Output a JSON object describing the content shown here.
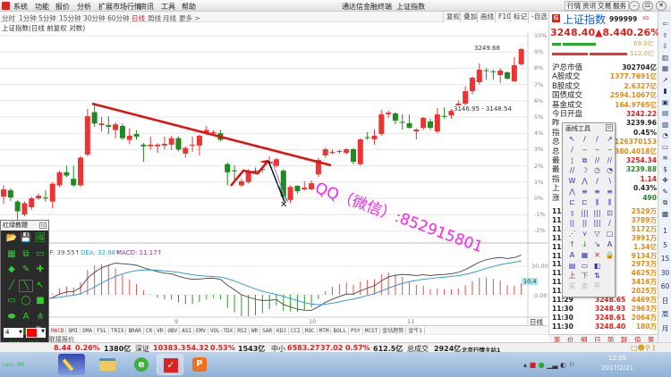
{
  "menu": {
    "items": [
      "系统",
      "功能",
      "报价",
      "分析",
      "扩展市场行情",
      "资讯",
      "工具",
      "帮助"
    ],
    "title": "通达信金融终端",
    "security": "上证指数",
    "right_buttons": [
      "行情",
      "资讯",
      "交易",
      "服务"
    ]
  },
  "periods": {
    "items": [
      "分时",
      "1分钟",
      "5分钟",
      "15分钟",
      "30分钟",
      "60分钟",
      "日线",
      "周线",
      "月线",
      "更多 >"
    ],
    "active": "日线"
  },
  "chart_tools": [
    "复权",
    "叠加",
    "画线",
    "F10",
    "标记",
    "-自选"
  ],
  "chart": {
    "title": "上证指数(日线 前复权 对数)",
    "high_label": "3249.68",
    "range_label": "3146.95 - 3148.54",
    "watermark": "QQ（微信）:852915801",
    "pct_ticks": [
      "10%",
      "9%",
      "8%",
      "7%",
      "6%",
      "5%",
      "4%",
      "3%",
      "2%",
      "1%",
      "0%",
      "-1%",
      "-2%"
    ],
    "x_ticks": [
      "9",
      "10",
      "11"
    ],
    "period_label": "日线",
    "zoom_buttons": [
      "+",
      "-",
      "0"
    ]
  },
  "chart_data": {
    "type": "candlestick",
    "ylabel_unit": "%",
    "ylim": [
      -2,
      10
    ],
    "x_ticks": [
      "9",
      "10",
      "11"
    ],
    "candles_ochl": [
      [
        0.1,
        0.55,
        0.8,
        -0.33
      ],
      [
        0.5,
        0.05,
        0.6,
        -0.16
      ],
      [
        -0.2,
        -0.8,
        -0.1,
        -1.3
      ],
      [
        -1.0,
        -0.3,
        -0.2,
        -1.1
      ],
      [
        -0.55,
        0.0,
        0.1,
        -0.7
      ],
      [
        0.0,
        0.16,
        0.3,
        -0.1
      ],
      [
        0.05,
        0.0,
        0.5,
        -0.2
      ],
      [
        -0.2,
        0.9,
        1.0,
        -0.6
      ],
      [
        0.8,
        1.6,
        1.7,
        0.7
      ],
      [
        1.6,
        1.4,
        2.0,
        1.3
      ],
      [
        1.2,
        0.8,
        2.0,
        0.7
      ],
      [
        0.8,
        2.5,
        2.6,
        0.7
      ],
      [
        2.7,
        5.05,
        5.5,
        2.6
      ],
      [
        5.3,
        4.6,
        5.8,
        4.4
      ],
      [
        4.5,
        4.6,
        5.0,
        4.1
      ],
      [
        4.5,
        4.4,
        5.05,
        3.96
      ],
      [
        4.2,
        4.55,
        4.7,
        3.7
      ],
      [
        4.45,
        3.7,
        4.6,
        3.6
      ],
      [
        3.6,
        3.85,
        4.3,
        3.35
      ],
      [
        3.96,
        3.8,
        4.2,
        3.6
      ],
      [
        3.3,
        3.2,
        3.4,
        2.25
      ],
      [
        3.2,
        3.3,
        3.8,
        3.0
      ],
      [
        3.2,
        3.3,
        3.4,
        2.8
      ],
      [
        3.25,
        3.35,
        3.8,
        3.0
      ],
      [
        3.3,
        3.7,
        3.85,
        2.97
      ],
      [
        3.7,
        3.0,
        3.8,
        2.9
      ],
      [
        2.75,
        3.1,
        3.2,
        2.5
      ],
      [
        3.25,
        3.3,
        3.8,
        2.85
      ],
      [
        3.25,
        3.85,
        3.9,
        2.64
      ],
      [
        4.0,
        4.2,
        4.45,
        3.9
      ],
      [
        4.0,
        4.07,
        4.2,
        3.9
      ],
      [
        4.0,
        3.6,
        4.2,
        3.5
      ],
      [
        2.1,
        1.6,
        2.2,
        0.8
      ],
      [
        1.72,
        1.68,
        2.03,
        1.04
      ],
      [
        0.8,
        1.05,
        1.2,
        0.7
      ],
      [
        1.0,
        1.7,
        1.8,
        0.9
      ],
      [
        1.7,
        1.65,
        1.9,
        1.5
      ],
      [
        1.8,
        1.75,
        2.0,
        1.6
      ],
      [
        2.15,
        2.25,
        2.6,
        2.0
      ],
      [
        2.0,
        2.4,
        2.5,
        1.9
      ],
      [
        1.7,
        0.1,
        1.8,
        0.0
      ],
      [
        -0.1,
        0.7,
        0.8,
        -0.3
      ],
      [
        0.77,
        0.44,
        0.8,
        0.3
      ],
      [
        0.55,
        0.66,
        1.05,
        0.5
      ],
      [
        0.55,
        0.93,
        1.1,
        0.5
      ],
      [
        1.48,
        2.36,
        2.5,
        1.3
      ],
      [
        2.64,
        3.02,
        3.1,
        2.5
      ],
      [
        2.8,
        2.86,
        3.0,
        2.7
      ],
      [
        2.86,
        2.91,
        3.0,
        2.75
      ],
      [
        2.8,
        3.02,
        3.1,
        2.7
      ],
      [
        3.02,
        2.25,
        3.1,
        2.1
      ],
      [
        2.1,
        3.63,
        3.7,
        2.0
      ],
      [
        3.76,
        3.72,
        4.07,
        3.6
      ],
      [
        3.63,
        3.85,
        4.23,
        3.3
      ],
      [
        3.96,
        5.16,
        5.44,
        3.85
      ],
      [
        5.16,
        5.27,
        5.4,
        4.95
      ],
      [
        5.22,
        4.78,
        5.3,
        4.56
      ],
      [
        4.7,
        4.65,
        5.16,
        4.23
      ],
      [
        4.62,
        4.34,
        5.16,
        4.3
      ],
      [
        4.12,
        4.23,
        4.3,
        3.63
      ],
      [
        4.34,
        4.95,
        5.0,
        4.2
      ],
      [
        4.73,
        4.34,
        4.89,
        4.2
      ],
      [
        4.12,
        5.16,
        5.55,
        4.0
      ],
      [
        5.07,
        5.03,
        5.6,
        4.9
      ],
      [
        5.11,
        5.38,
        5.5,
        4.9
      ],
      [
        5.6,
        5.82,
        6.0,
        5.5
      ],
      [
        5.82,
        6.59,
        6.9,
        5.7
      ],
      [
        6.59,
        7.42,
        7.5,
        6.4
      ],
      [
        7.14,
        7.91,
        8.3,
        7.0
      ],
      [
        7.88,
        7.84,
        8.0,
        7.3
      ],
      [
        7.82,
        7.78,
        7.9,
        7.3
      ],
      [
        7.58,
        7.86,
        8.0,
        7.1
      ],
      [
        7.75,
        7.36,
        7.8,
        7.3
      ],
      [
        7.2,
        8.19,
        8.7,
        7.2
      ],
      [
        8.24,
        9.18,
        9.23,
        8.2
      ]
    ],
    "colors": {
      "up": "#ee3333",
      "down": "#1f8a1f",
      "trendline": "#e01010"
    }
  },
  "macd": {
    "dif_label": "DIF: 39.55↑",
    "dea_label": "DEA: 32.98↑",
    "macd_label": "MACD: 11.17↑",
    "ticks": [
      "30.00",
      "0.00"
    ],
    "highlight": "10.4",
    "colors": {
      "dif": "#555555",
      "dea": "#3a9ad0",
      "macd": "#9030a0"
    }
  },
  "indicator_tabs": [
    "MACD",
    "DMI",
    "DMA",
    "FSL",
    "TRIX",
    "BRAR",
    "CR",
    "VR",
    "OBV",
    "ASI",
    "EMV",
    "VOL-TDX",
    "RSI",
    "WR",
    "SAR",
    "KDJ",
    "CCI",
    "ROC",
    "MTM",
    "BOLL",
    "PSY",
    "MCST",
    "金钻趋势",
    "金牛1"
  ],
  "link_row": "联接报价",
  "quote": {
    "name": "上证指数",
    "code": "999999",
    "badge": "G",
    "tag": "XG",
    "price": "3248.40",
    "change": "▲8.44",
    "pct": "0.26%",
    "bar_green": "69.0亿",
    "bar_red": "112.0亿",
    "rows": [
      {
        "label": "沪总市值",
        "value": "302704亿",
        "color": "#222"
      },
      {
        "label": "A股成交",
        "value": "1377.7691亿",
        "color": "#e08a1a"
      },
      {
        "label": "B股成交",
        "value": "2.6327亿",
        "color": "#e08a1a"
      },
      {
        "label": "国债成交",
        "value": "2594.1067亿",
        "color": "#e08a1a"
      },
      {
        "label": "基金成交",
        "value": "164.9765亿",
        "color": "#e08a1a"
      },
      {
        "label": "今日开盘",
        "value": "3242.22",
        "color": "#d22"
      },
      {
        "label": "昨",
        "value": "3239.96",
        "color": "#222"
      },
      {
        "label": "指",
        "value": "0.45%",
        "color": "#222"
      },
      {
        "label": "总",
        "value": "126370153",
        "color": "#e08a1a"
      },
      {
        "label": "总",
        "value": "1380.4018亿",
        "color": "#e08a1a"
      },
      {
        "label": "最",
        "value": "3254.34",
        "color": "#d22"
      },
      {
        "label": "最",
        "value": "3239.88",
        "color": "#1f8a1f"
      },
      {
        "label": "指",
        "value": "1.14",
        "color": "#d22"
      },
      {
        "label": "上",
        "value": "0.43%",
        "color": "#222"
      },
      {
        "label": "涨      家数",
        "value": "490",
        "color": "#1f8a1f"
      }
    ],
    "ticks": [
      {
        "time": "11:3",
        "price": "",
        "vol": "2529万"
      },
      {
        "time": "11:3",
        "price": "",
        "vol": "3789万"
      },
      {
        "time": "11:3",
        "price": "",
        "vol": "5172万"
      },
      {
        "time": "11:3",
        "price": "",
        "vol": "3991万"
      },
      {
        "time": "11:3",
        "price": "",
        "vol": "1.34亿"
      },
      {
        "time": "11:3",
        "price": "",
        "vol": "9134万"
      },
      {
        "time": "11:3",
        "price": "",
        "vol": "2973万"
      },
      {
        "time": "11:3",
        "price": "",
        "vol": "4625万"
      },
      {
        "time": "11:3",
        "price": "",
        "vol": "3416万"
      },
      {
        "time": "11:3",
        "price": "",
        "vol": "2025万"
      },
      {
        "time": "11:29",
        "price": "3248.65",
        "vol": "4469万"
      },
      {
        "time": "11:30",
        "price": "3248.93",
        "vol": "2963万"
      },
      {
        "time": "11:30",
        "price": "3248.61",
        "vol": "2064万"
      },
      {
        "time": "11:30",
        "price": "3248.40",
        "vol": "180万"
      }
    ],
    "tabs": [
      "笔",
      "价",
      "细",
      "日",
      "势",
      "联",
      "值",
      "筹"
    ]
  },
  "side_periods": [
    "1",
    "5",
    "15",
    "30",
    "60",
    "日",
    "周",
    "月"
  ],
  "draw_toolbar": {
    "title": "画线工具",
    "tools": [
      "↖",
      "/",
      "/",
      "↗",
      "/",
      "‒",
      "‒",
      "‒",
      "¦",
      "⧉",
      "//",
      "//",
      "//",
      "☽",
      "◷",
      "◔",
      "W",
      "⋀",
      "∕",
      "∖",
      "⋀",
      "≡",
      "≡",
      "≡",
      "⊏",
      "⊏",
      "⫼",
      "⫼",
      "⫾",
      "|||",
      "|||",
      "⊡",
      "||",
      "||",
      "|||",
      "∕",
      "⋰",
      "⋎",
      "▽",
      "▢",
      "↑",
      "↓",
      "↘",
      "A",
      "A",
      "▦",
      "✕",
      "🔒",
      "▤",
      "▭",
      "◧",
      "",
      "上",
      "下",
      "⇅",
      "",
      "买",
      "卖",
      "平",
      ""
    ]
  },
  "left_toolbox": {
    "title": "红绿教鞭",
    "tools": [
      "📂",
      "💾",
      "🖼",
      "▦",
      "⧉",
      "▭",
      "◆",
      "✎",
      "✚",
      "╱",
      "╲",
      "↖",
      "▭",
      "◯",
      "■",
      "⬬",
      "A",
      "⋔",
      "↶",
      "⊞",
      "🔍",
      "⋏",
      "↖",
      "⚲"
    ],
    "width_value": "4",
    "color": "#ff0000",
    "coords": "x:583  y:410",
    "length": "Len: 96"
  },
  "status": {
    "sh_change": "8.44",
    "sh_pct": "0.26%",
    "sh_amount": "1380亿",
    "sz_label": "深证",
    "sz_index": "10383.3",
    "sz_change": "54.32",
    "sz_pct": "0.53%",
    "sz_amount": "1543亿",
    "zx_label": "中小",
    "zx_index": "6583.27",
    "zx_change": "37.02",
    "zx_pct": "0.57%",
    "zx_amount": "612.5亿",
    "total_label": "总成交",
    "total_amount": "2924亿",
    "server": "北京行情主站1"
  },
  "taskbar": {
    "time": "12:55",
    "date": "2017/2/21"
  }
}
